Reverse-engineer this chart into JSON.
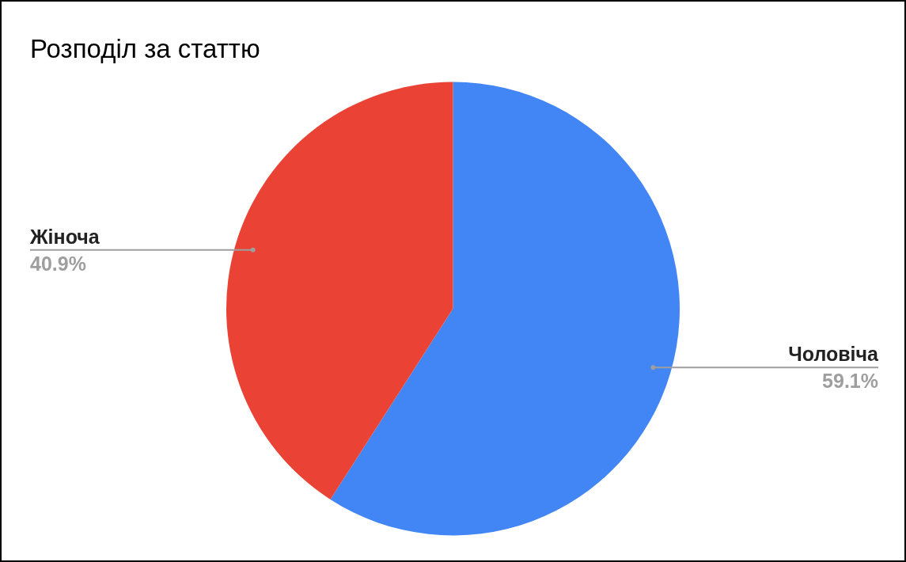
{
  "chart_data": {
    "type": "pie",
    "title": "Розподіл за статтю",
    "categories": [
      "Чоловіча",
      "Жіноча"
    ],
    "values": [
      59.1,
      40.9
    ],
    "colors": [
      "#4285f4",
      "#ea4335"
    ],
    "value_labels": [
      "59.1%",
      "40.9%"
    ],
    "legend": false
  }
}
